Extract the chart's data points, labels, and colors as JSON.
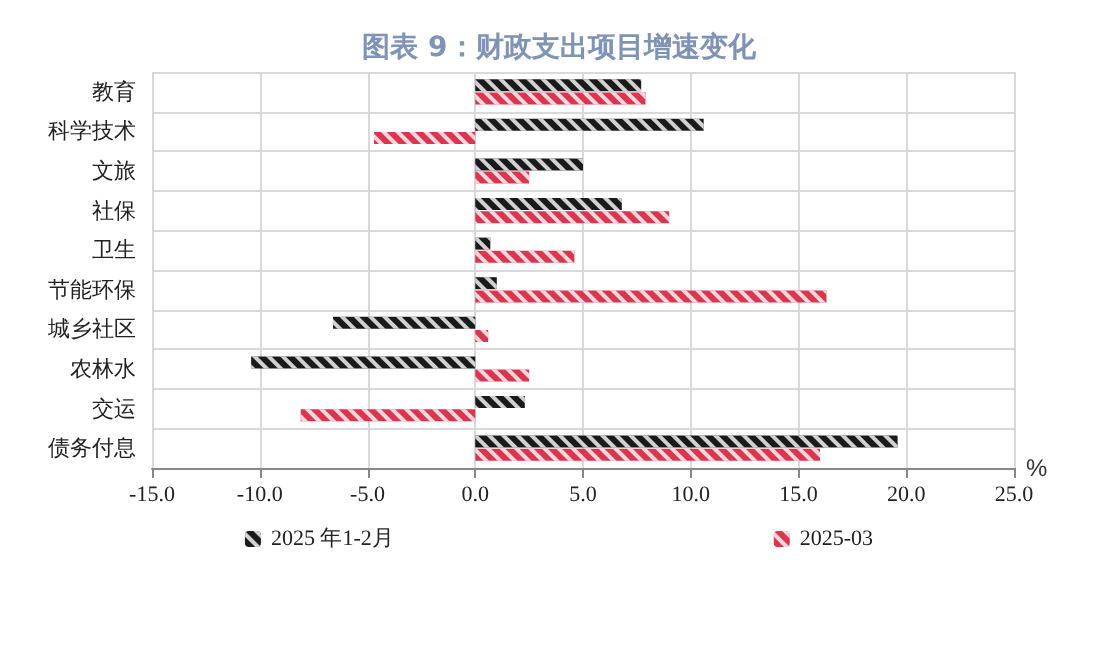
{
  "chart_data": {
    "type": "bar",
    "orientation": "horizontal",
    "title": "图表 9：财政支出项目增速变化",
    "xlabel": "%",
    "categories": [
      "教育",
      "科学技术",
      "文旅",
      "社保",
      "卫生",
      "节能环保",
      "城乡社区",
      "农林水",
      "交运",
      "债务付息"
    ],
    "series": [
      {
        "name": "2025 年1-2月",
        "color": "#1a1a1a",
        "values": [
          7.7,
          10.6,
          5.0,
          6.8,
          0.7,
          1.0,
          -6.6,
          -10.4,
          2.3,
          19.6
        ]
      },
      {
        "name": "2025-03",
        "color": "#d9364f",
        "values": [
          7.9,
          -4.7,
          2.5,
          9.0,
          4.6,
          16.3,
          0.6,
          2.5,
          -8.1,
          16.0
        ]
      }
    ],
    "xlim": [
      -15,
      25
    ],
    "xticks": [
      {
        "value": -15,
        "label": "-15.0"
      },
      {
        "value": -10,
        "label": "-10.0"
      },
      {
        "value": -5,
        "label": "-5.0"
      },
      {
        "value": 0,
        "label": "0.0"
      },
      {
        "value": 5,
        "label": "5.0"
      },
      {
        "value": 10,
        "label": "10.0"
      },
      {
        "value": 15,
        "label": "15.0"
      },
      {
        "value": 20,
        "label": "20.0"
      },
      {
        "value": 25,
        "label": "25.0"
      }
    ],
    "grid": true,
    "legend": "bottom"
  }
}
